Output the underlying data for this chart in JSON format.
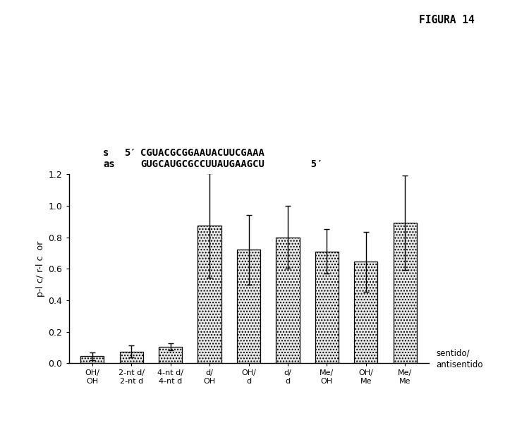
{
  "title": "FIGURA 14",
  "seq_s_label": "s",
  "seq_s_prime": "5′",
  "seq_s_seq": "CGUACGCGGAAUACUUCGAAA",
  "seq_as_label": "as",
  "seq_as_seq": "GUGCAUGCGCCUUAUGAAGCU",
  "seq_as_prime": "5′",
  "categories": [
    "OH/\nOH",
    "2-nt d/\n2-nt d",
    "4-nt d/\n4-nt d",
    "d/\nOH",
    "OH/\nd",
    "d/\nd",
    "Me/\nOH",
    "OH/\nMe",
    "Me/\nMe"
  ],
  "values": [
    0.045,
    0.075,
    0.105,
    0.875,
    0.72,
    0.8,
    0.71,
    0.645,
    0.89
  ],
  "errors": [
    0.025,
    0.038,
    0.022,
    0.33,
    0.22,
    0.2,
    0.14,
    0.19,
    0.3
  ],
  "ylabel": "p-l c/ r-l c  or",
  "xlabel_note": "sentido/\nantisentido",
  "ylim": [
    0,
    1.2
  ],
  "yticks": [
    0,
    0.2,
    0.4,
    0.6,
    0.8,
    1.0,
    1.2
  ],
  "bar_color": "#e8e8e8",
  "bar_hatch": "....",
  "bar_edgecolor": "#000000",
  "figsize": [
    7.5,
    6.1
  ],
  "dpi": 100
}
